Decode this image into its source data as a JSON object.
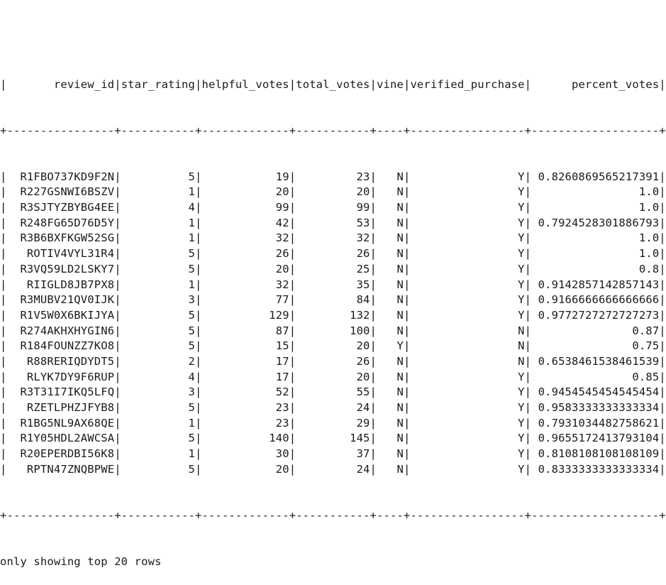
{
  "table": {
    "columns": [
      {
        "name": "review_id",
        "width": 16,
        "align": "right"
      },
      {
        "name": "star_rating",
        "width": 11,
        "align": "right"
      },
      {
        "name": "helpful_votes",
        "width": 13,
        "align": "right"
      },
      {
        "name": "total_votes",
        "width": 11,
        "align": "right"
      },
      {
        "name": "vine",
        "width": 4,
        "align": "right"
      },
      {
        "name": "verified_purchase",
        "width": 17,
        "align": "right"
      },
      {
        "name": "percent_votes",
        "width": 19,
        "align": "right"
      }
    ],
    "rows": [
      [
        "R1FBO737KD9F2N",
        "5",
        "19",
        "23",
        "N",
        "Y",
        "0.8260869565217391"
      ],
      [
        "R227GSNWI6BSZV",
        "1",
        "20",
        "20",
        "N",
        "Y",
        "1.0"
      ],
      [
        "R3SJTYZBYBG4EE",
        "4",
        "99",
        "99",
        "N",
        "Y",
        "1.0"
      ],
      [
        "R248FG65D76D5Y",
        "1",
        "42",
        "53",
        "N",
        "Y",
        "0.7924528301886793"
      ],
      [
        "R3B6BXFKGW52SG",
        "1",
        "32",
        "32",
        "N",
        "Y",
        "1.0"
      ],
      [
        "ROTIV4VYL31R4",
        "5",
        "26",
        "26",
        "N",
        "Y",
        "1.0"
      ],
      [
        "R3VQ59LD2LSKY7",
        "5",
        "20",
        "25",
        "N",
        "Y",
        "0.8"
      ],
      [
        "RIIGLD8JB7PX8",
        "1",
        "32",
        "35",
        "N",
        "Y",
        "0.9142857142857143"
      ],
      [
        "R3MUBV21QV0IJK",
        "3",
        "77",
        "84",
        "N",
        "Y",
        "0.9166666666666666"
      ],
      [
        "R1V5W0X6BKIJYA",
        "5",
        "129",
        "132",
        "N",
        "Y",
        "0.9772727272727273"
      ],
      [
        "R274AKHXHYGIN6",
        "5",
        "87",
        "100",
        "N",
        "N",
        "0.87"
      ],
      [
        "R184FOUNZZ7KO8",
        "5",
        "15",
        "20",
        "Y",
        "N",
        "0.75"
      ],
      [
        "R88RERIQDYDT5",
        "2",
        "17",
        "26",
        "N",
        "N",
        "0.6538461538461539"
      ],
      [
        "RLYK7DY9F6RUP",
        "4",
        "17",
        "20",
        "N",
        "Y",
        "0.85"
      ],
      [
        "R3T31I7IKQ5LFQ",
        "3",
        "52",
        "55",
        "N",
        "Y",
        "0.9454545454545454"
      ],
      [
        "RZETLPHZJFYB8",
        "5",
        "23",
        "24",
        "N",
        "Y",
        "0.9583333333333334"
      ],
      [
        "R1BG5NL9AX68QE",
        "1",
        "23",
        "29",
        "N",
        "Y",
        "0.7931034482758621"
      ],
      [
        "R1Y05HDL2AWCSA",
        "5",
        "140",
        "145",
        "N",
        "Y",
        "0.9655172413793104"
      ],
      [
        "R20EPERDBI56K8",
        "1",
        "30",
        "37",
        "N",
        "Y",
        "0.8108108108108109"
      ],
      [
        "RPTN47ZNQBPWE",
        "5",
        "20",
        "24",
        "N",
        "Y",
        "0.8333333333333334"
      ]
    ]
  },
  "footer": {
    "text": "only showing top 20 rows"
  }
}
